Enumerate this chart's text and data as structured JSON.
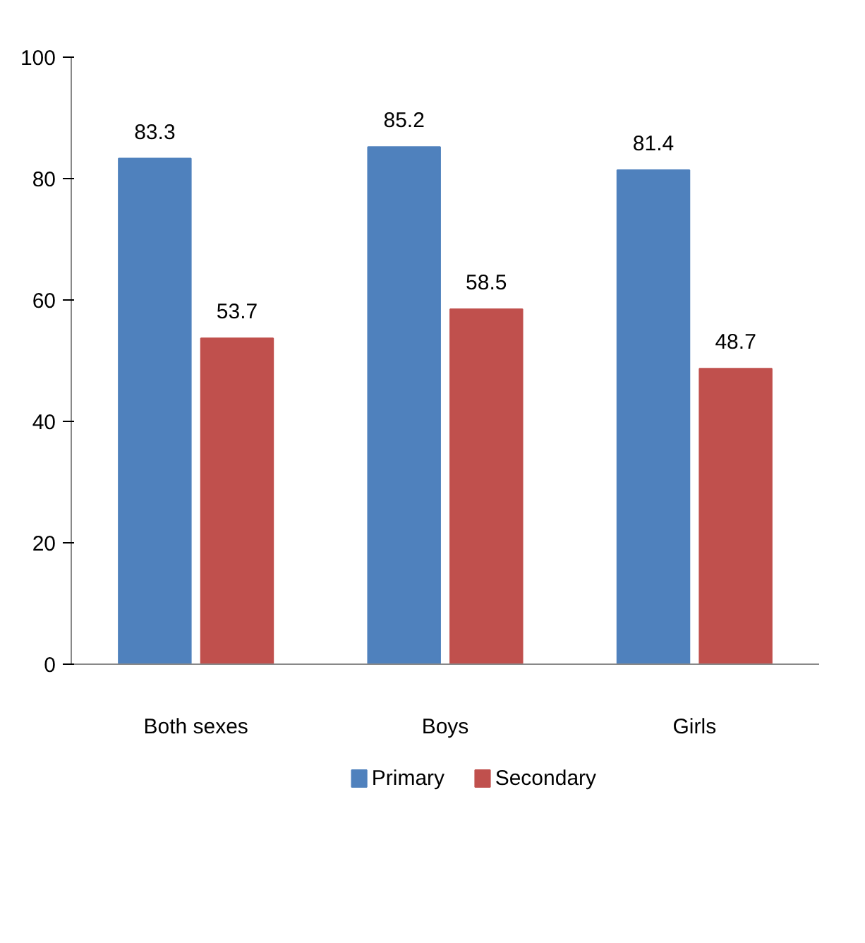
{
  "chart_data": {
    "type": "bar",
    "categories": [
      "Both sexes",
      "Boys",
      "Girls"
    ],
    "series": [
      {
        "name": "Primary",
        "color": "#4f81bd",
        "values": [
          83.3,
          85.2,
          81.4
        ]
      },
      {
        "name": "Secondary",
        "color": "#c0504d",
        "values": [
          53.7,
          58.5,
          48.7
        ]
      }
    ],
    "ylim": [
      0,
      100
    ],
    "yticks": [
      0,
      20,
      40,
      60,
      80,
      100
    ],
    "data_labels": true,
    "legend": "bottom",
    "grid": false
  }
}
